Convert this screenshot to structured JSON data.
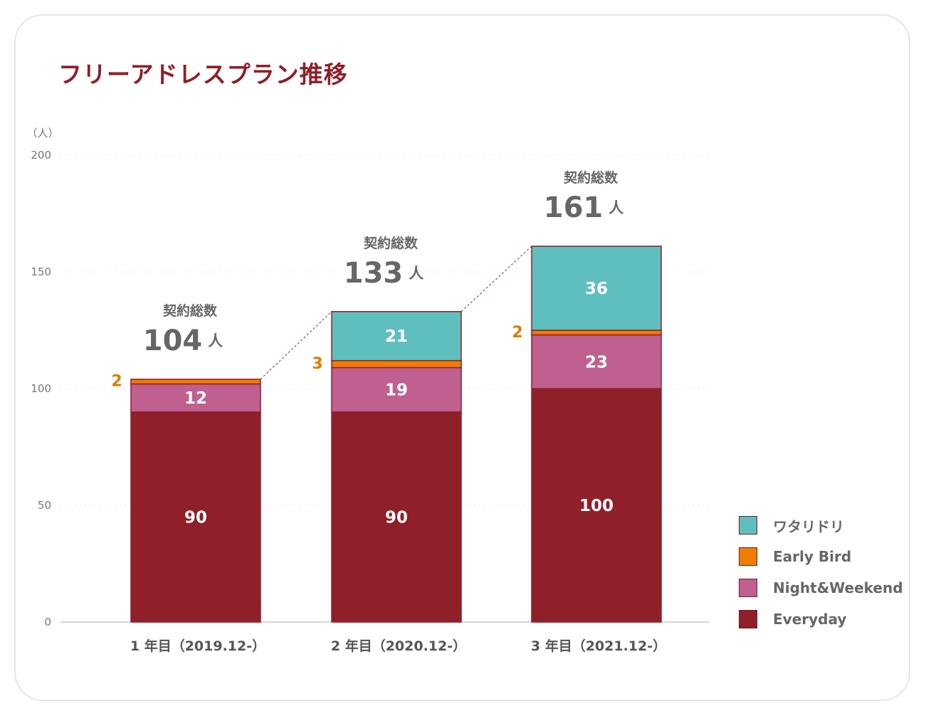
{
  "chart_data": {
    "type": "bar",
    "stacked": true,
    "title": "フリーアドレスプラン推移",
    "ylabel": "（人）",
    "ylim": [
      0,
      200
    ],
    "yticks": [
      0,
      50,
      100,
      150,
      200
    ],
    "categories": [
      "1 年目（2019.12-）",
      "2 年目（2020.12-）",
      "3 年目（2021.12-）"
    ],
    "series": [
      {
        "name": "Everyday",
        "color": "#8f1f28",
        "values": [
          90,
          90,
          100
        ]
      },
      {
        "name": "Night&Weekend",
        "color": "#c06090",
        "values": [
          12,
          19,
          23
        ]
      },
      {
        "name": "Early Bird",
        "color": "#ef7d00",
        "values": [
          2,
          3,
          2
        ]
      },
      {
        "name": "ワタリドリ",
        "color": "#5fbfbf",
        "values": [
          0,
          21,
          36
        ]
      }
    ],
    "totals_label": "契約総数",
    "totals": [
      104,
      133,
      161
    ],
    "total_unit": "人",
    "legend_order": [
      "ワタリドリ",
      "Early Bird",
      "Night&Weekend",
      "Everyday"
    ],
    "legend_position": "bottom-right"
  }
}
